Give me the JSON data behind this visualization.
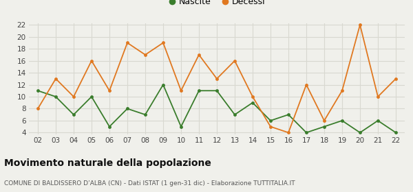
{
  "years": [
    "02",
    "03",
    "04",
    "05",
    "06",
    "07",
    "08",
    "09",
    "10",
    "11",
    "12",
    "13",
    "14",
    "15",
    "16",
    "17",
    "18",
    "19",
    "20",
    "21",
    "22"
  ],
  "nascite": [
    11,
    10,
    7,
    10,
    5,
    8,
    7,
    12,
    5,
    11,
    11,
    7,
    9,
    6,
    7,
    4,
    5,
    6,
    4,
    6,
    4
  ],
  "decessi": [
    8,
    13,
    10,
    16,
    11,
    19,
    17,
    19,
    11,
    17,
    13,
    16,
    10,
    5,
    4,
    12,
    6,
    11,
    22,
    10,
    13
  ],
  "nascite_color": "#3a7d2c",
  "decessi_color": "#e07820",
  "background_color": "#f0f0eb",
  "grid_color": "#d8d8d0",
  "title": "Movimento naturale della popolazione",
  "subtitle": "COMUNE DI BALDISSERO D’ALBA (CN) - Dati ISTAT (1 gen-31 dic) - Elaborazione TUTTITALIA.IT",
  "ylim_min": 4,
  "ylim_max": 22,
  "yticks": [
    4,
    6,
    8,
    10,
    12,
    14,
    16,
    18,
    20,
    22
  ],
  "legend_nascite": "Nascite",
  "legend_decessi": "Decessi"
}
